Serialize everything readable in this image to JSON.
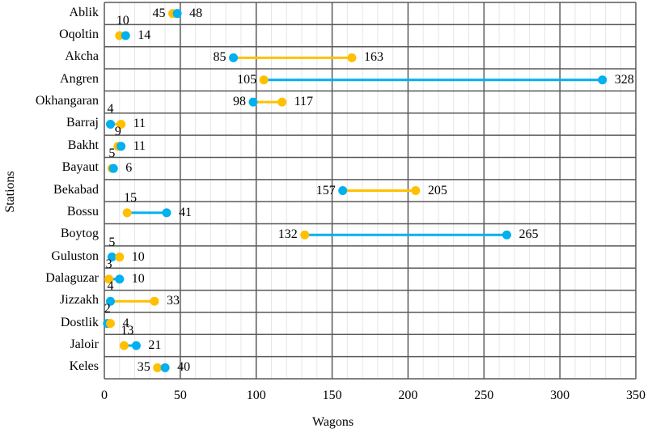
{
  "chart_data": {
    "type": "dumbbell",
    "title": "",
    "xlabel": "Wagons",
    "ylabel": "Stations",
    "xlim": [
      0,
      350
    ],
    "x_ticks": [
      0,
      50,
      100,
      150,
      200,
      250,
      300,
      350
    ],
    "x_minor_step": 10,
    "grid": true,
    "legend": null,
    "categories": [
      "Ablik",
      "Oqoltin",
      "Akcha",
      "Angren",
      "Okhangaran",
      "Barraj",
      "Bakht",
      "Bayaut",
      "Bekabad",
      "Bossu",
      "Boytog",
      "Guluston",
      "Dalaguzar",
      "Jizzakh",
      "Dostlik",
      "Jaloir",
      "Keles"
    ],
    "series": [
      {
        "name": "blue",
        "color": "#00B0F0",
        "values": [
          48,
          14,
          85,
          328,
          98,
          4,
          11,
          6,
          157,
          41,
          265,
          5,
          10,
          4,
          2,
          21,
          40
        ]
      },
      {
        "name": "yellow",
        "color": "#FFC000",
        "values": [
          45,
          10,
          163,
          105,
          117,
          11,
          9,
          5,
          205,
          15,
          132,
          10,
          3,
          33,
          4,
          13,
          35
        ]
      }
    ]
  },
  "colors": {
    "blue": "#00B0F0",
    "yellow": "#FFC000",
    "major_grid": "#595959",
    "minor_grid": "#E6E6E6"
  }
}
